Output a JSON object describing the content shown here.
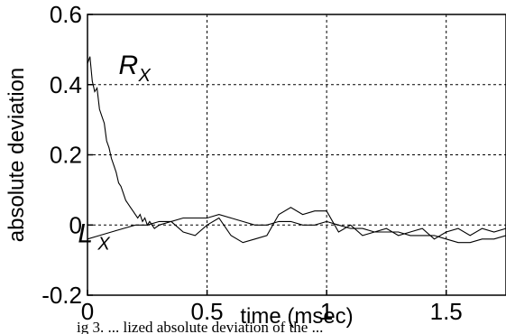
{
  "chart_data": {
    "type": "line",
    "xlabel": "time (msec)",
    "ylabel": "absolute deviation",
    "xlim": [
      0,
      1.75
    ],
    "ylim": [
      -0.2,
      0.6
    ],
    "x_ticks": [
      0,
      0.5,
      1,
      1.5
    ],
    "y_ticks": [
      -0.2,
      0,
      0.2,
      0.4,
      0.6
    ],
    "grid": true,
    "series": [
      {
        "name_main": "R",
        "name_sub": "X",
        "label_at": [
          0.13,
          0.43
        ],
        "x": [
          0,
          0.01,
          0.02,
          0.03,
          0.04,
          0.05,
          0.06,
          0.07,
          0.08,
          0.09,
          0.1,
          0.11,
          0.12,
          0.13,
          0.14,
          0.15,
          0.16,
          0.17,
          0.18,
          0.19,
          0.2,
          0.21,
          0.22,
          0.23,
          0.24,
          0.25,
          0.26,
          0.28,
          0.3,
          0.35,
          0.4,
          0.45,
          0.5,
          0.55,
          0.6,
          0.65,
          0.7,
          0.75,
          0.8,
          0.85,
          0.9,
          0.95,
          1.0,
          1.05,
          1.1,
          1.15,
          1.2,
          1.25,
          1.3,
          1.35,
          1.4,
          1.45,
          1.5,
          1.55,
          1.6,
          1.65,
          1.7,
          1.75
        ],
        "y": [
          0.46,
          0.48,
          0.41,
          0.38,
          0.39,
          0.33,
          0.31,
          0.29,
          0.24,
          0.22,
          0.19,
          0.17,
          0.15,
          0.12,
          0.11,
          0.09,
          0.07,
          0.06,
          0.05,
          0.04,
          0.03,
          0.02,
          0.03,
          0.01,
          0.02,
          0.0,
          0.01,
          -0.01,
          0.0,
          0.01,
          -0.02,
          -0.03,
          0.0,
          0.02,
          -0.03,
          -0.05,
          -0.04,
          -0.03,
          0.03,
          0.05,
          0.03,
          0.04,
          0.04,
          -0.02,
          0.0,
          -0.03,
          -0.02,
          -0.01,
          -0.03,
          -0.02,
          -0.01,
          -0.04,
          -0.02,
          -0.01,
          -0.03,
          -0.01,
          -0.02,
          -0.01
        ]
      },
      {
        "name_main": "L",
        "name_sub": "X",
        "label_at": [
          -0.04,
          -0.05
        ],
        "x": [
          0,
          0.05,
          0.1,
          0.15,
          0.2,
          0.25,
          0.3,
          0.35,
          0.4,
          0.45,
          0.5,
          0.55,
          0.6,
          0.65,
          0.7,
          0.75,
          0.8,
          0.85,
          0.9,
          0.95,
          1.0,
          1.05,
          1.1,
          1.15,
          1.2,
          1.25,
          1.3,
          1.35,
          1.4,
          1.45,
          1.5,
          1.55,
          1.6,
          1.65,
          1.7,
          1.75
        ],
        "y": [
          -0.04,
          -0.03,
          -0.02,
          -0.01,
          0.0,
          0.0,
          0.01,
          0.01,
          0.02,
          0.02,
          0.02,
          0.03,
          0.02,
          0.01,
          0.0,
          0.0,
          0.01,
          0.01,
          0.0,
          0.0,
          0.01,
          0.0,
          -0.01,
          -0.01,
          -0.02,
          -0.02,
          -0.02,
          -0.03,
          -0.03,
          -0.03,
          -0.04,
          -0.05,
          -0.05,
          -0.04,
          -0.04,
          -0.03
        ]
      }
    ]
  },
  "caption_fragment": "ig 3. ...  lized absolute deviation of the ..."
}
